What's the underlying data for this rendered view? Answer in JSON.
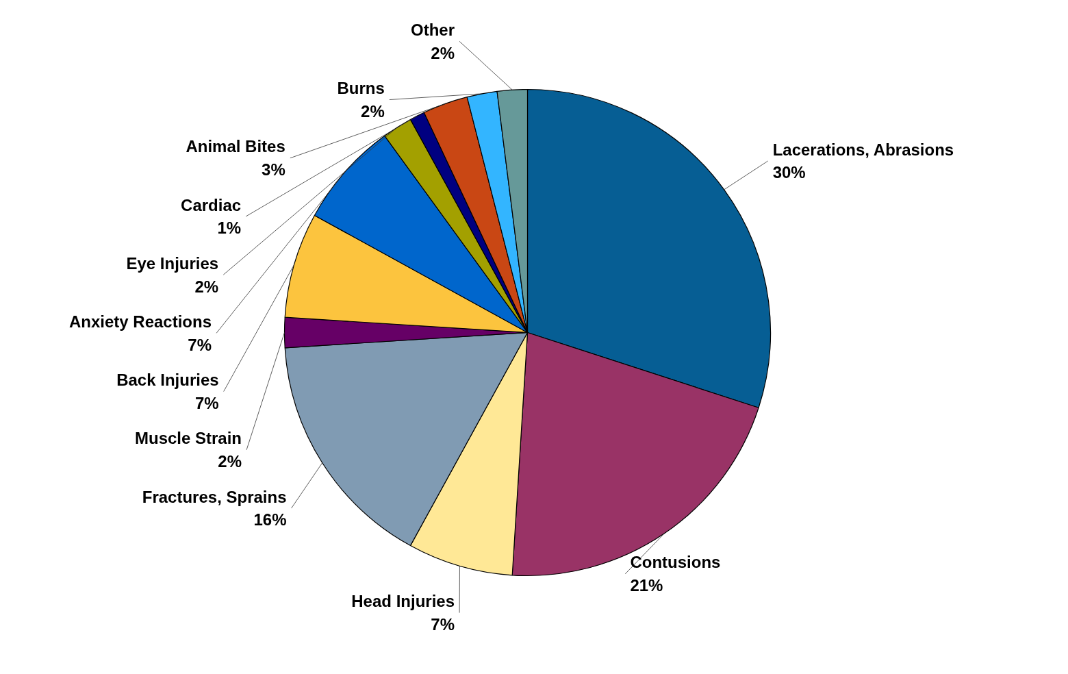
{
  "chart_data": {
    "type": "pie",
    "categories": [
      "Lacerations, Abrasions",
      "Contusions",
      "Head Injuries",
      "Fractures, Sprains",
      "Muscle Strain",
      "Back Injuries",
      "Anxiety Reactions",
      "Eye Injuries",
      "Cardiac",
      "Animal Bites",
      "Burns",
      "Other"
    ],
    "values": [
      30,
      21,
      7,
      16,
      2,
      7,
      7,
      2,
      1,
      3,
      2,
      2
    ],
    "value_labels": [
      "30%",
      "21%",
      "7%",
      "16%",
      "2%",
      "7%",
      "7%",
      "2%",
      "1%",
      "3%",
      "2%",
      "2%"
    ],
    "colors": [
      "#065e94",
      "#993366",
      "#ffe896",
      "#809bb3",
      "#660066",
      "#fcc43e",
      "#0066cc",
      "#a3a000",
      "#000080",
      "#c94714",
      "#33b5ff",
      "#669999"
    ]
  }
}
